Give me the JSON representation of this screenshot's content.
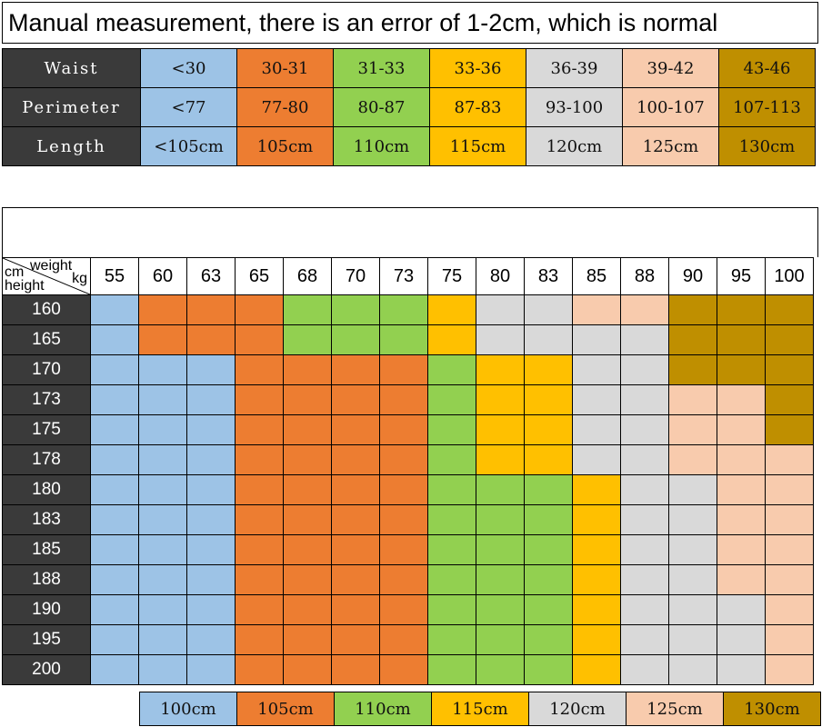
{
  "title": "Manual measurement, there is an error of 1-2cm, which is normal",
  "colors": {
    "blue": "#9dc3e6",
    "orange": "#ed7d31",
    "green": "#92d050",
    "yellow": "#ffc000",
    "grey": "#d9d9d9",
    "peach": "#f8cbad",
    "olive": "#bf8f00",
    "dark": "#3a3a3a"
  },
  "size_table": {
    "size_colors": [
      "blue",
      "orange",
      "green",
      "yellow",
      "grey",
      "peach",
      "olive"
    ],
    "rows": [
      {
        "label": "Waist",
        "values": [
          "<30",
          "30-31",
          "31-33",
          "33-36",
          "36-39",
          "39-42",
          "43-46"
        ]
      },
      {
        "label": "Perimeter",
        "values": [
          "<77",
          "77-80",
          "80-87",
          "87-83",
          "93-100",
          "100-107",
          "107-113"
        ]
      },
      {
        "label": "Length",
        "values": [
          "<105cm",
          "105cm",
          "110cm",
          "115cm",
          "120cm",
          "125cm",
          "130cm"
        ]
      }
    ]
  },
  "grid": {
    "corner": {
      "weight": "weight",
      "cm": "cm",
      "kg": "kg",
      "height": "height"
    },
    "weights": [
      "55",
      "60",
      "63",
      "65",
      "68",
      "70",
      "73",
      "75",
      "80",
      "83",
      "85",
      "88",
      "90",
      "95",
      "100"
    ],
    "rows": [
      {
        "height": "160",
        "cells": [
          "blue",
          "orange",
          "orange",
          "orange",
          "green",
          "green",
          "green",
          "yellow",
          "grey",
          "grey",
          "peach",
          "peach",
          "olive",
          "olive",
          "olive"
        ]
      },
      {
        "height": "165",
        "cells": [
          "blue",
          "orange",
          "orange",
          "orange",
          "green",
          "green",
          "green",
          "yellow",
          "grey",
          "grey",
          "grey",
          "grey",
          "olive",
          "olive",
          "olive"
        ]
      },
      {
        "height": "170",
        "cells": [
          "blue",
          "blue",
          "blue",
          "orange",
          "orange",
          "orange",
          "orange",
          "green",
          "yellow",
          "yellow",
          "grey",
          "grey",
          "olive",
          "olive",
          "olive"
        ]
      },
      {
        "height": "173",
        "cells": [
          "blue",
          "blue",
          "blue",
          "orange",
          "orange",
          "orange",
          "orange",
          "green",
          "yellow",
          "yellow",
          "grey",
          "grey",
          "peach",
          "peach",
          "olive"
        ]
      },
      {
        "height": "175",
        "cells": [
          "blue",
          "blue",
          "blue",
          "orange",
          "orange",
          "orange",
          "orange",
          "green",
          "yellow",
          "yellow",
          "grey",
          "grey",
          "peach",
          "peach",
          "olive"
        ]
      },
      {
        "height": "178",
        "cells": [
          "blue",
          "blue",
          "blue",
          "orange",
          "orange",
          "orange",
          "orange",
          "green",
          "yellow",
          "yellow",
          "grey",
          "grey",
          "peach",
          "peach",
          "peach"
        ]
      },
      {
        "height": "180",
        "cells": [
          "blue",
          "blue",
          "blue",
          "orange",
          "orange",
          "orange",
          "orange",
          "green",
          "green",
          "green",
          "yellow",
          "grey",
          "grey",
          "peach",
          "peach"
        ]
      },
      {
        "height": "183",
        "cells": [
          "blue",
          "blue",
          "blue",
          "orange",
          "orange",
          "orange",
          "orange",
          "green",
          "green",
          "green",
          "yellow",
          "grey",
          "grey",
          "peach",
          "peach"
        ]
      },
      {
        "height": "185",
        "cells": [
          "blue",
          "blue",
          "blue",
          "orange",
          "orange",
          "orange",
          "orange",
          "green",
          "green",
          "green",
          "yellow",
          "grey",
          "grey",
          "peach",
          "peach"
        ]
      },
      {
        "height": "188",
        "cells": [
          "blue",
          "blue",
          "blue",
          "orange",
          "orange",
          "orange",
          "orange",
          "green",
          "green",
          "green",
          "yellow",
          "grey",
          "grey",
          "peach",
          "peach"
        ]
      },
      {
        "height": "190",
        "cells": [
          "blue",
          "blue",
          "blue",
          "orange",
          "orange",
          "orange",
          "orange",
          "green",
          "green",
          "green",
          "yellow",
          "grey",
          "grey",
          "grey",
          "peach"
        ]
      },
      {
        "height": "195",
        "cells": [
          "blue",
          "blue",
          "blue",
          "orange",
          "orange",
          "orange",
          "orange",
          "green",
          "green",
          "green",
          "yellow",
          "grey",
          "grey",
          "grey",
          "peach"
        ]
      },
      {
        "height": "200",
        "cells": [
          "blue",
          "blue",
          "blue",
          "orange",
          "orange",
          "orange",
          "orange",
          "green",
          "green",
          "green",
          "yellow",
          "grey",
          "grey",
          "grey",
          "peach"
        ]
      }
    ]
  },
  "legend": [
    {
      "label": "100cm",
      "color": "blue"
    },
    {
      "label": "105cm",
      "color": "orange"
    },
    {
      "label": "110cm",
      "color": "green"
    },
    {
      "label": "115cm",
      "color": "yellow"
    },
    {
      "label": "120cm",
      "color": "grey"
    },
    {
      "label": "125cm",
      "color": "peach"
    },
    {
      "label": "130cm",
      "color": "olive"
    }
  ]
}
